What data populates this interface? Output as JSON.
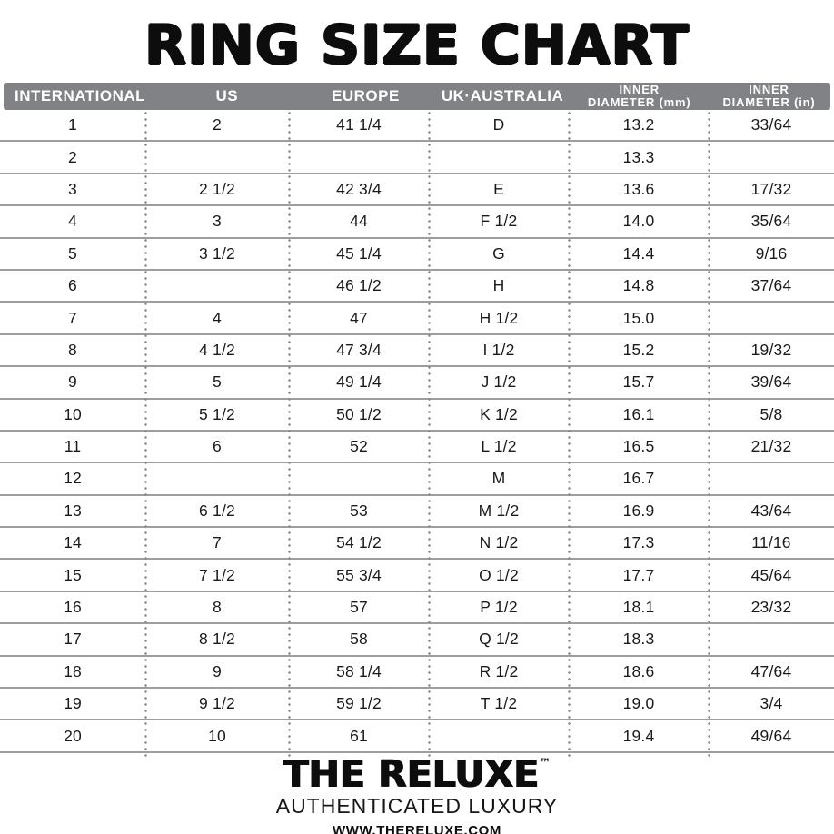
{
  "title": "RING SIZE CHART",
  "chart_data": {
    "type": "table",
    "title": "RING SIZE CHART",
    "columns": [
      "INTERNATIONAL",
      "US",
      "EUROPE",
      "UK·AUSTRALIA",
      "INNER\nDIAMETER (mm)",
      "INNER\nDIAMETER (in)"
    ],
    "column_keys": [
      "international",
      "us",
      "europe",
      "uk-australia",
      "inner-diameter-mm",
      "inner-diameter-in"
    ],
    "rows": [
      [
        "1",
        "2",
        "41 1/4",
        "D",
        "13.2",
        "33/64"
      ],
      [
        "2",
        "",
        "",
        "",
        "13.3",
        ""
      ],
      [
        "3",
        "2 1/2",
        "42 3/4",
        "E",
        "13.6",
        "17/32"
      ],
      [
        "4",
        "3",
        "44",
        "F 1/2",
        "14.0",
        "35/64"
      ],
      [
        "5",
        "3 1/2",
        "45 1/4",
        "G",
        "14.4",
        "9/16"
      ],
      [
        "6",
        "",
        "46 1/2",
        "H",
        "14.8",
        "37/64"
      ],
      [
        "7",
        "4",
        "47",
        "H 1/2",
        "15.0",
        ""
      ],
      [
        "8",
        "4 1/2",
        "47 3/4",
        "I 1/2",
        "15.2",
        "19/32"
      ],
      [
        "9",
        "5",
        "49 1/4",
        "J 1/2",
        "15.7",
        "39/64"
      ],
      [
        "10",
        "5 1/2",
        "50 1/2",
        "K 1/2",
        "16.1",
        "5/8"
      ],
      [
        "11",
        "6",
        "52",
        "L 1/2",
        "16.5",
        "21/32"
      ],
      [
        "12",
        "",
        "",
        "M",
        "16.7",
        ""
      ],
      [
        "13",
        "6 1/2",
        "53",
        "M 1/2",
        "16.9",
        "43/64"
      ],
      [
        "14",
        "7",
        "54 1/2",
        "N 1/2",
        "17.3",
        "11/16"
      ],
      [
        "15",
        "7 1/2",
        "55 3/4",
        "O 1/2",
        "17.7",
        "45/64"
      ],
      [
        "16",
        "8",
        "57",
        "P 1/2",
        "18.1",
        "23/32"
      ],
      [
        "17",
        "8 1/2",
        "58",
        "Q 1/2",
        "18.3",
        ""
      ],
      [
        "18",
        "9",
        "58 1/4",
        "R 1/2",
        "18.6",
        "47/64"
      ],
      [
        "19",
        "9 1/2",
        "59 1/2",
        "T 1/2",
        "19.0",
        "3/4"
      ],
      [
        "20",
        "10",
        "61",
        "",
        "19.4",
        "49/64"
      ]
    ]
  },
  "footer": {
    "brand": "THE RELUXE",
    "trademark": "™",
    "tagline": "AUTHENTICATED LUXURY",
    "url": "WWW.THERELUXE.COM"
  },
  "colors": {
    "header_bg": "#808285",
    "header_text": "#ffffff",
    "row_line": "#9e9e9e",
    "column_dots": "#8a8a8a",
    "text": "#1a1a1a"
  }
}
